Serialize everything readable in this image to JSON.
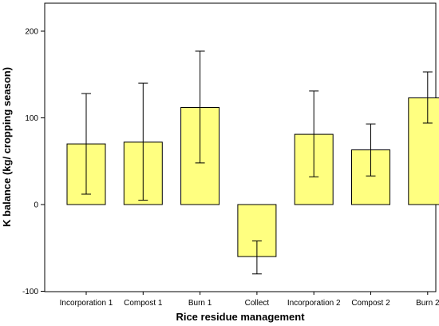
{
  "chart_data": {
    "type": "bar",
    "title": "",
    "xlabel": "Rice residue management",
    "ylabel": "K balance (kg/ cropping season)",
    "categories": [
      "Incorporation 1",
      "Compost 1",
      "Burn 1",
      "Collect",
      "Incorporation 2",
      "Compost 2",
      "Burn 2"
    ],
    "values": [
      70,
      72,
      112,
      -60,
      81,
      63,
      123
    ],
    "error_low": [
      12,
      5,
      48,
      -80,
      32,
      33,
      94
    ],
    "error_high": [
      128,
      140,
      177,
      -42,
      131,
      93,
      153
    ],
    "ylim": [
      -100,
      220
    ],
    "yticks": [
      -100,
      0,
      100,
      200
    ],
    "grid": false,
    "bar_color": "#ffff80"
  }
}
